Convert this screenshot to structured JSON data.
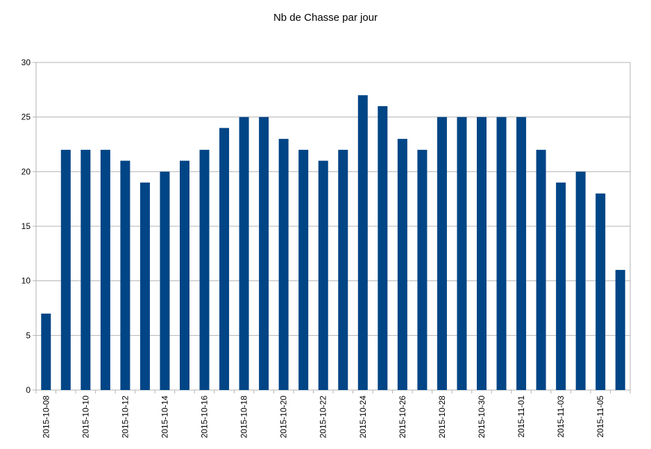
{
  "chart_data": {
    "type": "bar",
    "title": "Nb de Chasse par jour",
    "xlabel": "",
    "ylabel": "",
    "ylim": [
      0,
      30
    ],
    "yticks": [
      0,
      5,
      10,
      15,
      20,
      25,
      30
    ],
    "grid": true,
    "legend": "none",
    "bar_color": "#004586",
    "categories": [
      "2015-10-08",
      "2015-10-09",
      "2015-10-10",
      "2015-10-11",
      "2015-10-12",
      "2015-10-13",
      "2015-10-14",
      "2015-10-15",
      "2015-10-16",
      "2015-10-17",
      "2015-10-18",
      "2015-10-19",
      "2015-10-20",
      "2015-10-21",
      "2015-10-22",
      "2015-10-23",
      "2015-10-24",
      "2015-10-25",
      "2015-10-26",
      "2015-10-27",
      "2015-10-28",
      "2015-10-29",
      "2015-10-30",
      "2015-10-31",
      "2015-11-01",
      "2015-11-02",
      "2015-11-03",
      "2015-11-04",
      "2015-11-05",
      "2015-11-06"
    ],
    "shown_xtick_labels": [
      "2015-10-08",
      "2015-10-10",
      "2015-10-12",
      "2015-10-14",
      "2015-10-16",
      "2015-10-18",
      "2015-10-20",
      "2015-10-22",
      "2015-10-24",
      "2015-10-26",
      "2015-10-28",
      "2015-10-30",
      "2015-11-01",
      "2015-11-03",
      "2015-11-05"
    ],
    "values": [
      7,
      22,
      22,
      22,
      21,
      19,
      20,
      21,
      22,
      24,
      25,
      25,
      23,
      22,
      21,
      22,
      27,
      26,
      23,
      22,
      25,
      25,
      25,
      25,
      25,
      22,
      19,
      20,
      18,
      11
    ]
  }
}
